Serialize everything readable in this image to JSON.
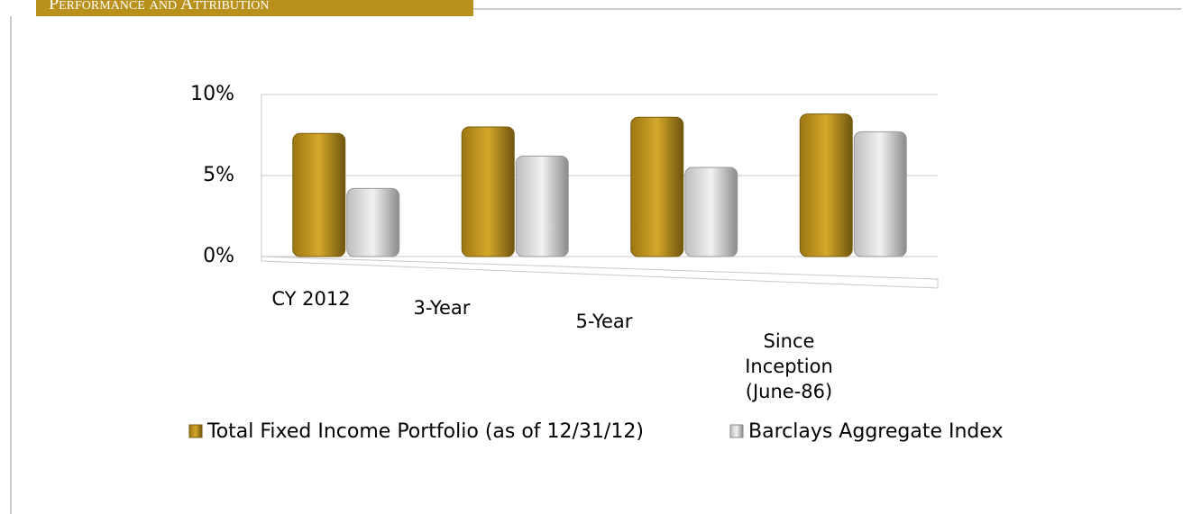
{
  "header": {
    "title": "Performance and Attribution"
  },
  "chart_data": {
    "type": "bar",
    "categories": [
      "CY 2012",
      "3-Year",
      "5-Year",
      "Since Inception (June-86)"
    ],
    "series": [
      {
        "name": "Total Fixed Income Portfolio (as of 12/31/12)",
        "color": "#b8901c",
        "values": [
          7.6,
          8.0,
          8.6,
          8.8
        ]
      },
      {
        "name": "Barclays Aggregate Index",
        "color": "#c8c8c8",
        "values": [
          4.2,
          6.2,
          5.5,
          7.7
        ]
      }
    ],
    "ylim": [
      0,
      10
    ],
    "yticks": [
      {
        "value": 0,
        "label": "0%"
      },
      {
        "value": 5,
        "label": "5%"
      },
      {
        "value": 10,
        "label": "10%"
      }
    ],
    "grid": true,
    "legend": "bottom"
  }
}
